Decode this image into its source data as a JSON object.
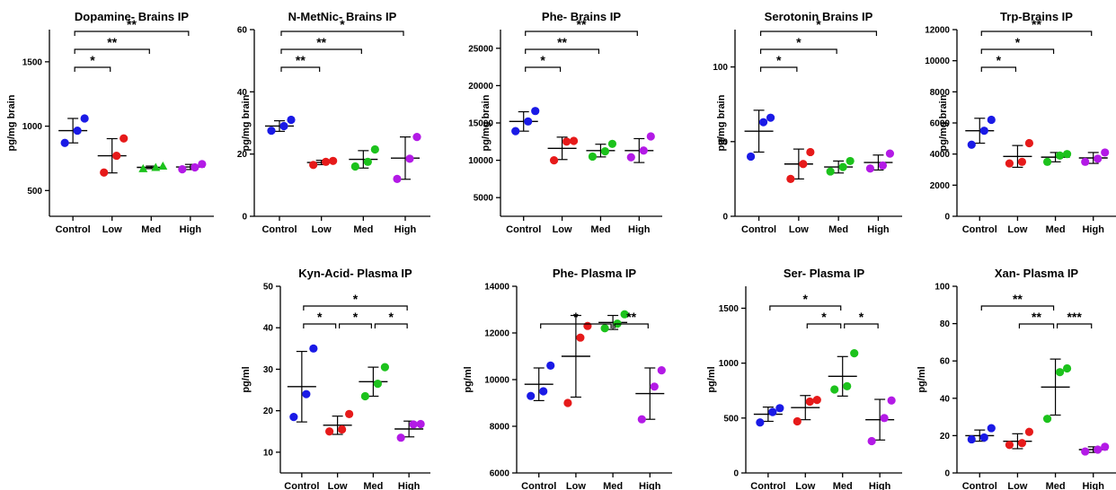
{
  "chart_data": [
    {
      "type": "scatter",
      "title": "Dopamine- Brains IP",
      "ylabel": "pg/mg brain",
      "ylim": [
        300,
        1750
      ],
      "yticks": [
        500,
        1000,
        1500
      ],
      "yticklabels": [
        "500",
        "1000",
        "1500"
      ],
      "categories": [
        "Control",
        "Low",
        "Med",
        "High"
      ],
      "marker": "circle",
      "points": [
        [
          870,
          965,
          1060
        ],
        [
          640,
          770,
          905
        ],
        [
          670,
          680,
          690
        ],
        [
          665,
          680,
          705
        ]
      ],
      "means": [
        965,
        770,
        680,
        683
      ],
      "sd": [
        95,
        133,
        10,
        20
      ],
      "significance": [
        {
          "from": 0,
          "to": 1,
          "label": "*"
        },
        {
          "from": 0,
          "to": 2,
          "label": "**"
        },
        {
          "from": 0,
          "to": 3,
          "label": "**"
        }
      ]
    },
    {
      "type": "scatter",
      "title": "N-MetNic- Brains IP",
      "ylabel": "pg/mg brain",
      "ylim": [
        0,
        60
      ],
      "yticks": [
        0,
        20,
        40,
        60
      ],
      "yticklabels": [
        "0",
        "20",
        "40",
        "60"
      ],
      "categories": [
        "Control",
        "Low",
        "Med",
        "High"
      ],
      "marker": "circle",
      "points": [
        [
          27.5,
          29,
          31
        ],
        [
          16.5,
          17.5,
          17.8
        ],
        [
          16,
          17.5,
          21.5
        ],
        [
          12,
          18.5,
          25.5
        ]
      ],
      "means": [
        29,
        17.3,
        18.3,
        18.7
      ],
      "sd": [
        1.7,
        0.7,
        2.8,
        6.8
      ],
      "significance": [
        {
          "from": 0,
          "to": 1,
          "label": "**"
        },
        {
          "from": 0,
          "to": 2,
          "label": "**"
        },
        {
          "from": 0,
          "to": 3,
          "label": "*"
        }
      ]
    },
    {
      "type": "scatter",
      "title": "Phe- Brains IP",
      "ylabel": "pg/mg brain",
      "ylim": [
        2500,
        27500
      ],
      "yticks": [
        5000,
        10000,
        15000,
        20000,
        25000
      ],
      "yticklabels": [
        "5000",
        "10000",
        "15000",
        "20000",
        "25000"
      ],
      "categories": [
        "Control",
        "Low",
        "Med",
        "High"
      ],
      "marker": "circle",
      "points": [
        [
          13900,
          15200,
          16600
        ],
        [
          10000,
          12500,
          12600
        ],
        [
          10500,
          11200,
          12200
        ],
        [
          10400,
          11300,
          13200
        ]
      ],
      "means": [
        15200,
        11600,
        11300,
        11300
      ],
      "sd": [
        1300,
        1500,
        850,
        1600
      ],
      "significance": [
        {
          "from": 0,
          "to": 1,
          "label": "*"
        },
        {
          "from": 0,
          "to": 2,
          "label": "**"
        },
        {
          "from": 0,
          "to": 3,
          "label": "**"
        }
      ]
    },
    {
      "type": "scatter",
      "title": "Serotonin Brains IP",
      "ylabel": "pg/mg brain",
      "ylim": [
        0,
        125
      ],
      "yticks": [
        0,
        50,
        100
      ],
      "yticklabels": [
        "0",
        "50",
        "100"
      ],
      "categories": [
        "Control",
        "Low",
        "Med",
        "High"
      ],
      "marker": "circle",
      "points": [
        [
          40,
          63,
          66
        ],
        [
          25,
          35,
          43
        ],
        [
          30,
          33,
          37
        ],
        [
          32,
          34,
          42
        ]
      ],
      "means": [
        57,
        35,
        33,
        36
      ],
      "sd": [
        14,
        10,
        4,
        5
      ],
      "significance": [
        {
          "from": 0,
          "to": 1,
          "label": "*"
        },
        {
          "from": 0,
          "to": 2,
          "label": "*"
        },
        {
          "from": 0,
          "to": 3,
          "label": "*"
        }
      ]
    },
    {
      "type": "scatter",
      "title": "Trp-Brains IP",
      "ylabel": "pg/mg brain",
      "ylim": [
        0,
        12000
      ],
      "yticks": [
        0,
        2000,
        4000,
        6000,
        8000,
        10000,
        12000
      ],
      "yticklabels": [
        "0",
        "2000",
        "4000",
        "6000",
        "8000",
        "10000",
        "12000"
      ],
      "categories": [
        "Control",
        "Low",
        "Med",
        "High"
      ],
      "marker": "circle",
      "points": [
        [
          4600,
          5500,
          6200
        ],
        [
          3400,
          3500,
          4700
        ],
        [
          3500,
          3900,
          4000
        ],
        [
          3500,
          3700,
          4100
        ]
      ],
      "means": [
        5500,
        3850,
        3800,
        3750
      ],
      "sd": [
        800,
        700,
        300,
        350
      ],
      "significance": [
        {
          "from": 0,
          "to": 1,
          "label": "*"
        },
        {
          "from": 0,
          "to": 2,
          "label": "*"
        },
        {
          "from": 0,
          "to": 3,
          "label": "**"
        }
      ]
    },
    {
      "type": "scatter",
      "title": "Kyn-Acid- Plasma IP",
      "ylabel": "pg/ml",
      "ylim": [
        5,
        50
      ],
      "yticks": [
        10,
        20,
        30,
        40,
        50
      ],
      "yticklabels": [
        "10",
        "20",
        "30",
        "40",
        "50"
      ],
      "categories": [
        "Control",
        "Low",
        "Med",
        "High"
      ],
      "marker": "circle",
      "points": [
        [
          18.5,
          24,
          35
        ],
        [
          15,
          15.5,
          19.2
        ],
        [
          23.5,
          26.5,
          30.5
        ],
        [
          13.5,
          16.7,
          16.8
        ]
      ],
      "means": [
        25.8,
        16.5,
        27,
        15.6
      ],
      "sd": [
        8.5,
        2.2,
        3.5,
        1.9
      ],
      "significance": [
        {
          "from": 0,
          "to": 1,
          "label": "*"
        },
        {
          "from": 1,
          "to": 2,
          "label": "*"
        },
        {
          "from": 2,
          "to": 3,
          "label": "*"
        },
        {
          "from": 0,
          "to": 3,
          "label": "*"
        }
      ]
    },
    {
      "type": "scatter",
      "title": "Phe- Plasma IP",
      "ylabel": "pg/ml",
      "ylim": [
        6000,
        14000
      ],
      "yticks": [
        6000,
        8000,
        10000,
        12000,
        14000
      ],
      "yticklabels": [
        "6000",
        "8000",
        "10000",
        "12000",
        "14000"
      ],
      "categories": [
        "Control",
        "Low",
        "Med",
        "High"
      ],
      "marker": "circle",
      "points": [
        [
          9300,
          9500,
          10600
        ],
        [
          9000,
          11800,
          12300
        ],
        [
          12200,
          12400,
          12800
        ],
        [
          8300,
          9700,
          10400
        ]
      ],
      "means": [
        9800,
        11000,
        12450,
        9400
      ],
      "sd": [
        700,
        1750,
        300,
        1100
      ],
      "significance": [
        {
          "from": 0,
          "to": 2,
          "label": "*"
        },
        {
          "from": 2,
          "to": 3,
          "label": "**"
        }
      ]
    },
    {
      "type": "scatter",
      "title": "Ser- Plasma IP",
      "ylabel": "pg/ml",
      "ylim": [
        0,
        1700
      ],
      "yticks": [
        0,
        500,
        1000,
        1500
      ],
      "yticklabels": [
        "0",
        "500",
        "1000",
        "1500"
      ],
      "categories": [
        "Control",
        "Low",
        "Med",
        "High"
      ],
      "marker": "circle",
      "points": [
        [
          460,
          555,
          590
        ],
        [
          470,
          650,
          665
        ],
        [
          760,
          790,
          1090
        ],
        [
          290,
          500,
          660
        ]
      ],
      "means": [
        535,
        595,
        880,
        485
      ],
      "sd": [
        65,
        110,
        180,
        185
      ],
      "significance": [
        {
          "from": 0,
          "to": 2,
          "label": "*"
        },
        {
          "from": 1,
          "to": 2,
          "label": "*"
        },
        {
          "from": 2,
          "to": 3,
          "label": "*"
        }
      ]
    },
    {
      "type": "scatter",
      "title": "Xan- Plasma IP",
      "ylabel": "pg/ml",
      "ylim": [
        0,
        100
      ],
      "yticks": [
        0,
        20,
        40,
        60,
        80,
        100
      ],
      "yticklabels": [
        "0",
        "20",
        "40",
        "60",
        "80",
        "100"
      ],
      "categories": [
        "Control",
        "Low",
        "Med",
        "High"
      ],
      "marker": "circle",
      "points": [
        [
          18,
          19,
          24
        ],
        [
          15,
          16,
          22
        ],
        [
          29,
          54,
          56
        ],
        [
          11.5,
          12.5,
          14
        ]
      ],
      "means": [
        20,
        17,
        46,
        12.5
      ],
      "sd": [
        3,
        4,
        15,
        1.5
      ],
      "significance": [
        {
          "from": 0,
          "to": 2,
          "label": "**"
        },
        {
          "from": 1,
          "to": 2,
          "label": "**"
        },
        {
          "from": 2,
          "to": 3,
          "label": "***"
        }
      ]
    }
  ],
  "colors": {
    "control": "#1a1ae6",
    "low": "#e61a1a",
    "med": "#1cc21c",
    "high": "#b31ae6",
    "axis": "#000000"
  }
}
